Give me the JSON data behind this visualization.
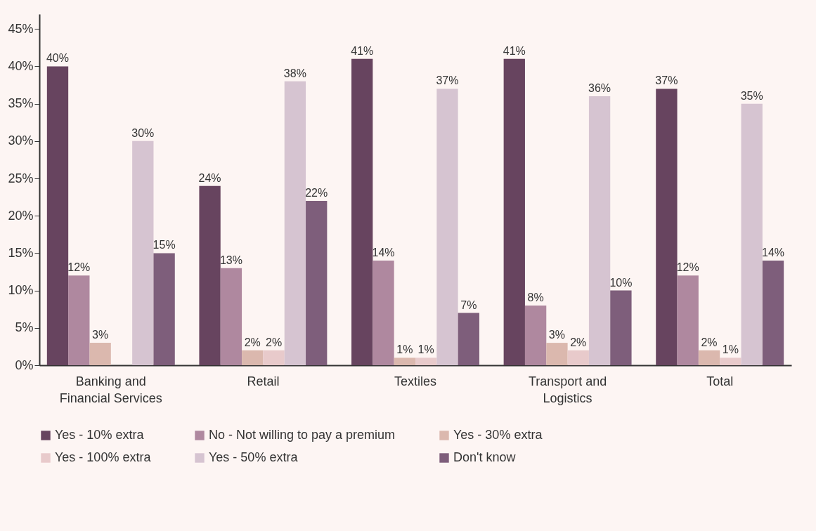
{
  "chart_data": {
    "type": "bar",
    "categories": [
      "Banking and Financial Services",
      "Retail",
      "Textiles",
      "Transport and Logistics",
      "Total"
    ],
    "series": [
      {
        "name": "Yes - 10% extra",
        "color": "#67445f",
        "values": [
          40,
          24,
          41,
          41,
          37
        ],
        "value_labels": [
          "40%",
          "24%",
          "41%",
          "41%",
          "37%"
        ]
      },
      {
        "name": "No - Not willing to pay a premium",
        "color": "#af889f",
        "values": [
          12,
          13,
          14,
          8,
          12
        ],
        "value_labels": [
          "12%",
          "13%",
          "14%",
          "8%",
          "12%"
        ]
      },
      {
        "name": "Yes - 30% extra",
        "color": "#dbb8ae",
        "values": [
          3,
          2,
          1,
          3,
          2
        ],
        "value_labels": [
          "3%",
          "2%",
          "1%",
          "3%",
          "2%"
        ]
      },
      {
        "name": "Yes - 100% extra",
        "color": "#e8cacb",
        "values": [
          null,
          2,
          1,
          2,
          1
        ],
        "value_labels": [
          null,
          "2%",
          "1%",
          "2%",
          "1%"
        ]
      },
      {
        "name": "Yes - 50% extra",
        "color": "#d6c4d1",
        "values": [
          30,
          38,
          37,
          36,
          35
        ],
        "value_labels": [
          "30%",
          "38%",
          "37%",
          "36%",
          "35%"
        ]
      },
      {
        "name": "Don't know",
        "color": "#7e5e7b",
        "values": [
          15,
          22,
          7,
          10,
          14
        ],
        "value_labels": [
          "15%",
          "22%",
          "7%",
          "10%",
          "14%"
        ]
      }
    ],
    "ylim": [
      0,
      47
    ],
    "yticks": [
      {
        "value": 0,
        "label": "0%"
      },
      {
        "value": 5,
        "label": "5%"
      },
      {
        "value": 10,
        "label": "10%"
      },
      {
        "value": 15,
        "label": "15%"
      },
      {
        "value": 20,
        "label": "20%"
      },
      {
        "value": 25,
        "label": "25%"
      },
      {
        "value": 30,
        "label": "30%"
      },
      {
        "value": 35,
        "label": "35%"
      },
      {
        "value": 40,
        "label": "40%"
      },
      {
        "value": 45,
        "label": "45%"
      }
    ],
    "grid": false,
    "legend": "bottom"
  }
}
